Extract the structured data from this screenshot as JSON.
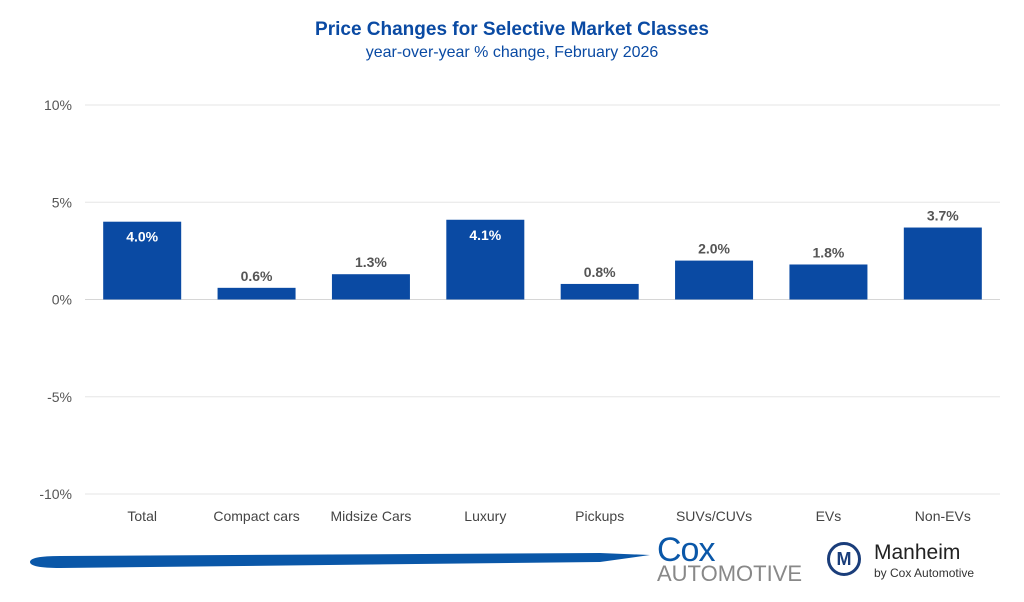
{
  "chart_data": {
    "type": "bar",
    "title": "Price Changes for Selective Market Classes",
    "subtitle": "year-over-year % change, February 2026",
    "categories": [
      "Total",
      "Compact cars",
      "Midsize Cars",
      "Luxury",
      "Pickups",
      "SUVs/CUVs",
      "EVs",
      "Non-EVs"
    ],
    "values": [
      4.0,
      0.6,
      1.3,
      4.1,
      0.8,
      2.0,
      1.8,
      3.7
    ],
    "data_labels": [
      "4.0%",
      "0.6%",
      "1.3%",
      "4.1%",
      "0.8%",
      "2.0%",
      "1.8%",
      "3.7%"
    ],
    "ylim": [
      -10,
      10
    ],
    "yticks": [
      10,
      5,
      0,
      -5,
      -10
    ],
    "ytick_labels": [
      "10%",
      "5%",
      "0%",
      "-5%",
      "-10%"
    ],
    "grid": true,
    "bar_color": "#0a4aa3"
  },
  "branding": {
    "cox": "Cox",
    "automotive": "AUTOMOTIVE",
    "manheim": "Manheim",
    "by_cox": "by Cox Automotive",
    "manheim_logo": "M"
  }
}
